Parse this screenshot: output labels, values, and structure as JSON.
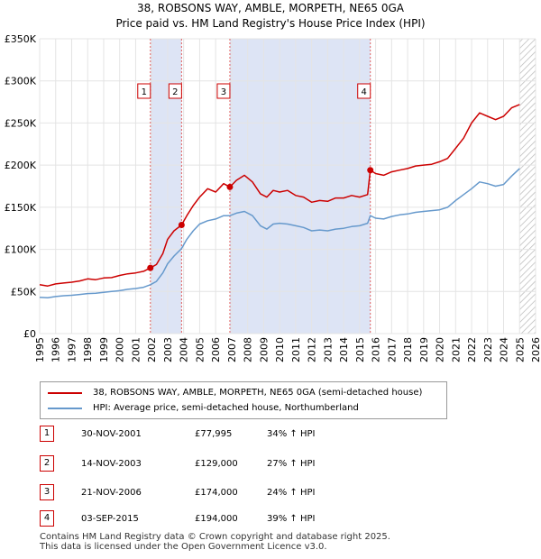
{
  "header": {
    "title": "38, ROBSONS WAY, AMBLE, MORPETH, NE65 0GA",
    "subtitle": "Price paid vs. HM Land Registry's House Price Index (HPI)"
  },
  "colors": {
    "price": "#cc0000",
    "hpi": "#6699cc",
    "shade": "#dde4f5",
    "marker_line": "#e06060"
  },
  "chart_data": {
    "type": "line",
    "xlim": [
      1995,
      2026
    ],
    "ylim": [
      0,
      350000
    ],
    "x_ticks": [
      "1995",
      "1996",
      "1997",
      "1998",
      "1999",
      "2000",
      "2001",
      "2002",
      "2003",
      "2004",
      "2005",
      "2006",
      "2007",
      "2008",
      "2009",
      "2010",
      "2011",
      "2012",
      "2013",
      "2014",
      "2015",
      "2016",
      "2017",
      "2018",
      "2019",
      "2020",
      "2021",
      "2022",
      "2023",
      "2024",
      "2025",
      "2026"
    ],
    "y_ticks": [
      {
        "value": 0,
        "label": "£0"
      },
      {
        "value": 50000,
        "label": "£50K"
      },
      {
        "value": 100000,
        "label": "£100K"
      },
      {
        "value": 150000,
        "label": "£150K"
      },
      {
        "value": 200000,
        "label": "£200K"
      },
      {
        "value": 250000,
        "label": "£250K"
      },
      {
        "value": 300000,
        "label": "£300K"
      },
      {
        "value": 350000,
        "label": "£350K"
      }
    ],
    "shaded_ranges": [
      [
        2001.92,
        2003.87
      ],
      [
        2006.89,
        2015.67
      ]
    ],
    "hatch_from": 2025.0,
    "series": [
      {
        "name": "38, ROBSONS WAY, AMBLE, MORPETH, NE65 0GA (semi-detached house)",
        "x": [
          1995.0,
          1995.5,
          1996.0,
          1996.5,
          1997.0,
          1997.5,
          1998.0,
          1998.5,
          1999.0,
          1999.5,
          2000.0,
          2000.5,
          2001.0,
          2001.5,
          2001.92,
          2002.3,
          2002.7,
          2003.0,
          2003.4,
          2003.87,
          2004.2,
          2004.6,
          2005.0,
          2005.5,
          2006.0,
          2006.5,
          2006.89,
          2007.3,
          2007.8,
          2008.3,
          2008.8,
          2009.2,
          2009.6,
          2010.0,
          2010.5,
          2011.0,
          2011.5,
          2012.0,
          2012.5,
          2013.0,
          2013.5,
          2014.0,
          2014.5,
          2015.0,
          2015.5,
          2015.67,
          2016.0,
          2016.5,
          2017.0,
          2017.5,
          2018.0,
          2018.5,
          2019.0,
          2019.5,
          2020.0,
          2020.5,
          2021.0,
          2021.5,
          2022.0,
          2022.5,
          2023.0,
          2023.5,
          2024.0,
          2024.5,
          2025.0
        ],
        "y": [
          58000,
          56500,
          59000,
          60000,
          61000,
          62500,
          65000,
          64000,
          66000,
          66500,
          69000,
          71000,
          72000,
          74000,
          77995,
          82000,
          95000,
          112000,
          122000,
          129000,
          140000,
          152000,
          162000,
          172000,
          168000,
          178000,
          174000,
          182000,
          188000,
          180000,
          166000,
          162000,
          170000,
          168000,
          170000,
          164000,
          162000,
          156000,
          158000,
          157000,
          161000,
          161000,
          164000,
          162000,
          165000,
          194000,
          190000,
          188000,
          192000,
          194000,
          196000,
          199000,
          200000,
          201000,
          204000,
          208000,
          220000,
          232000,
          250000,
          262000,
          258000,
          254000,
          258000,
          268000,
          272000
        ]
      },
      {
        "name": "HPI: Average price, semi-detached house, Northumberland",
        "x": [
          1995.0,
          1995.5,
          1996.0,
          1996.5,
          1997.0,
          1997.5,
          1998.0,
          1998.5,
          1999.0,
          1999.5,
          2000.0,
          2000.5,
          2001.0,
          2001.5,
          2001.92,
          2002.3,
          2002.7,
          2003.0,
          2003.4,
          2003.87,
          2004.2,
          2004.6,
          2005.0,
          2005.5,
          2006.0,
          2006.5,
          2006.89,
          2007.3,
          2007.8,
          2008.3,
          2008.8,
          2009.2,
          2009.6,
          2010.0,
          2010.5,
          2011.0,
          2011.5,
          2012.0,
          2012.5,
          2013.0,
          2013.5,
          2014.0,
          2014.5,
          2015.0,
          2015.5,
          2015.67,
          2016.0,
          2016.5,
          2017.0,
          2017.5,
          2018.0,
          2018.5,
          2019.0,
          2019.5,
          2020.0,
          2020.5,
          2021.0,
          2021.5,
          2022.0,
          2022.5,
          2023.0,
          2023.5,
          2024.0,
          2024.5,
          2025.0
        ],
        "y": [
          43000,
          42500,
          44000,
          45000,
          45500,
          46500,
          47500,
          48000,
          49000,
          50000,
          51000,
          52500,
          53500,
          55000,
          58000,
          62000,
          72000,
          83000,
          92000,
          101000,
          112000,
          122000,
          130000,
          134000,
          136000,
          140000,
          140000,
          143000,
          145000,
          140000,
          128000,
          124000,
          130000,
          131000,
          130000,
          128000,
          126000,
          122000,
          123000,
          122000,
          124000,
          125000,
          127000,
          128000,
          131000,
          140000,
          137000,
          136000,
          139000,
          141000,
          142000,
          144000,
          145000,
          146000,
          147000,
          150000,
          158000,
          165000,
          172000,
          180000,
          178000,
          175000,
          177000,
          187000,
          196000
        ]
      }
    ],
    "sales": [
      {
        "id": "1",
        "year": 2001.92,
        "price": 77995,
        "date": "30-NOV-2001",
        "price_label": "£77,995",
        "hpi_change": "34% ↑ HPI"
      },
      {
        "id": "2",
        "year": 2003.87,
        "price": 129000,
        "date": "14-NOV-2003",
        "price_label": "£129,000",
        "hpi_change": "27% ↑ HPI"
      },
      {
        "id": "3",
        "year": 2006.89,
        "price": 174000,
        "date": "21-NOV-2006",
        "price_label": "£174,000",
        "hpi_change": "24% ↑ HPI"
      },
      {
        "id": "4",
        "year": 2015.67,
        "price": 194000,
        "date": "03-SEP-2015",
        "price_label": "£194,000",
        "hpi_change": "39% ↑ HPI"
      }
    ]
  },
  "legend": {
    "price_label": "38, ROBSONS WAY, AMBLE, MORPETH, NE65 0GA (semi-detached house)",
    "hpi_label": "HPI: Average price, semi-detached house, Northumberland"
  },
  "footer": {
    "line1": "Contains HM Land Registry data © Crown copyright and database right 2025.",
    "line2": "This data is licensed under the Open Government Licence v3.0."
  }
}
